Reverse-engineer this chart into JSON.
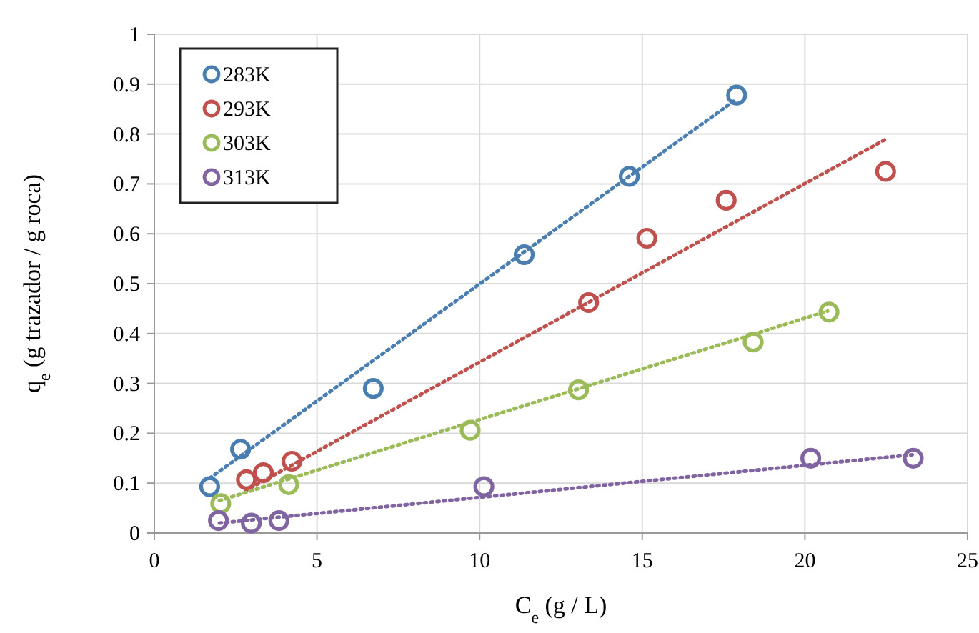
{
  "chart_data": {
    "type": "scatter",
    "xlabel": "C$_{e}$ (g / L)",
    "ylabel": "q$_{e}$ (g trazador / g roca)",
    "xlim": [
      0,
      25
    ],
    "xticks": [
      0,
      5,
      10,
      15,
      20,
      25
    ],
    "ylim": [
      0,
      1
    ],
    "yticks": [
      0,
      0.1,
      0.2,
      0.3,
      0.4,
      0.5,
      0.6,
      0.7,
      0.8,
      0.9,
      1
    ],
    "grid": true,
    "legend": "top left",
    "marker": "circle",
    "series": [
      {
        "name": "283K",
        "color": "#4a7eb0",
        "x": [
          1.7,
          2.65,
          6.73,
          11.37,
          14.6,
          17.9
        ],
        "values": [
          0.093,
          0.168,
          0.29,
          0.558,
          0.715,
          0.878
        ]
      },
      {
        "name": "293K",
        "color": "#c0504d",
        "x": [
          2.83,
          3.35,
          4.23,
          13.35,
          15.14,
          17.58,
          22.48
        ],
        "values": [
          0.107,
          0.121,
          0.144,
          0.462,
          0.591,
          0.667,
          0.725
        ]
      },
      {
        "name": "303K",
        "color": "#9bbb59",
        "x": [
          2.04,
          4.13,
          9.71,
          13.04,
          18.41,
          20.74
        ],
        "values": [
          0.059,
          0.097,
          0.206,
          0.287,
          0.383,
          0.443
        ]
      },
      {
        "name": "313K",
        "color": "#8064a2",
        "x": [
          1.97,
          2.98,
          3.83,
          10.13,
          20.18,
          23.33
        ],
        "values": [
          0.025,
          0.02,
          0.025,
          0.093,
          0.15,
          0.15
        ]
      },
      {
        "type": "line",
        "color": "#4a7eb0",
        "line_style": "dotted",
        "marker": "none",
        "x": [
          1.7,
          17.9
        ],
        "values": [
          0.11,
          0.87
        ]
      },
      {
        "type": "line",
        "color": "#c0504d",
        "line_style": "dotted",
        "marker": "none",
        "x": [
          2.8,
          22.5
        ],
        "values": [
          0.085,
          0.79
        ]
      },
      {
        "type": "line",
        "color": "#9bbb59",
        "line_style": "dotted",
        "marker": "none",
        "x": [
          2.0,
          20.7
        ],
        "values": [
          0.065,
          0.445
        ]
      },
      {
        "type": "line",
        "color": "#8064a2",
        "line_style": "dotted",
        "marker": "none",
        "x": [
          2.0,
          23.3
        ],
        "values": [
          0.02,
          0.157
        ]
      }
    ]
  }
}
